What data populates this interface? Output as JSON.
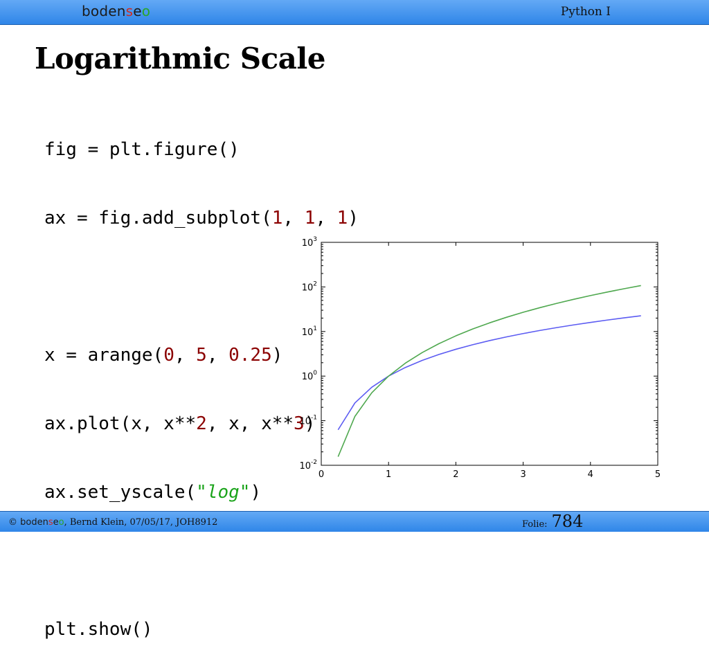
{
  "header": {
    "brand": [
      "boden",
      "s",
      "e",
      "o"
    ],
    "course": "Python I"
  },
  "slide": {
    "title": "Logarithmic Scale"
  },
  "code": {
    "l1": "fig = plt.figure()",
    "l2_a": "ax = fig.add_subplot(",
    "l2_n1": "1",
    "l2_n2": "1",
    "l2_n3": "1",
    "l2_b": ")",
    "l4_a": "x = arange(",
    "l4_n1": "0",
    "l4_n2": "5",
    "l4_n3": "0.25",
    "l4_b": ")",
    "l5_a": "ax.plot(x, x**",
    "l5_n1": "2",
    "l5_b": ", x, x**",
    "l5_n2": "3",
    "l5_c": ")",
    "l6_a": "ax.set_yscale(",
    "l6_q1": "\"",
    "l6_s": "log",
    "l6_q2": "\"",
    "l6_b": ")",
    "l8": "plt.show()"
  },
  "chart_data": {
    "type": "line",
    "title": "",
    "xlabel": "",
    "ylabel": "",
    "xlim": [
      0,
      5
    ],
    "ylim": [
      0.01,
      1000
    ],
    "yscale": "log",
    "grid": false,
    "x": [
      0.25,
      0.5,
      0.75,
      1.0,
      1.25,
      1.5,
      1.75,
      2.0,
      2.25,
      2.5,
      2.75,
      3.0,
      3.25,
      3.5,
      3.75,
      4.0,
      4.25,
      4.5,
      4.75
    ],
    "series": [
      {
        "values": [
          0.0625,
          0.25,
          0.5625,
          1.0,
          1.5625,
          2.25,
          3.0625,
          4.0,
          5.0625,
          6.25,
          7.5625,
          9.0,
          10.5625,
          12.25,
          14.0625,
          16.0,
          18.0625,
          20.25,
          22.5625
        ],
        "color": "#5c5cf2"
      },
      {
        "values": [
          0.015625,
          0.125,
          0.421875,
          1.0,
          1.953125,
          3.375,
          5.359375,
          8.0,
          11.390625,
          15.625,
          20.796875,
          27.0,
          34.328125,
          42.875,
          52.734375,
          64.0,
          76.765625,
          91.125,
          107.171875
        ],
        "color": "#4fa84f"
      }
    ],
    "xticks": [
      "0",
      "1",
      "2",
      "3",
      "4",
      "5"
    ],
    "yticks": [
      {
        "base": "10",
        "exp": "-2"
      },
      {
        "base": "10",
        "exp": "-1"
      },
      {
        "base": "10",
        "exp": "0"
      },
      {
        "base": "10",
        "exp": "1"
      },
      {
        "base": "10",
        "exp": "2"
      },
      {
        "base": "10",
        "exp": "3"
      }
    ]
  },
  "footer": {
    "copyright": "©",
    "brand": [
      "boden",
      "s",
      "e",
      "o"
    ],
    "info": ", Bernd Klein, 07/05/17, JOH8912",
    "folie_label": "Folie:",
    "folie_number": "784"
  },
  "colors": {
    "bar_top": "#63a9f5",
    "bar_bottom": "#2f86e8",
    "code_number": "#8b0000",
    "code_string": "#1aa31a"
  }
}
